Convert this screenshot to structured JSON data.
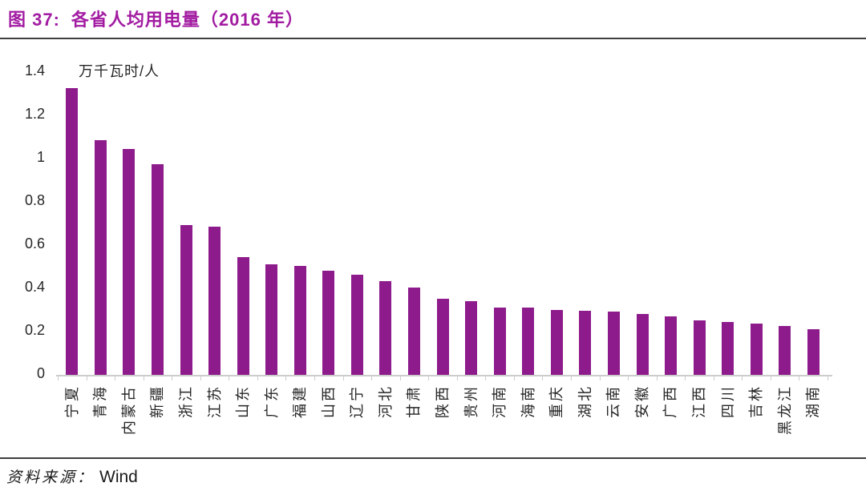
{
  "header": {
    "figure_number": "图 37:",
    "title": "各省人均用电量（2016 年）"
  },
  "chart_data": {
    "type": "bar",
    "title": "图 37: 各省人均用电量（2016 年）",
    "unit_label": "万千瓦时/人",
    "xlabel": "",
    "ylabel": "万千瓦时/人",
    "categories": [
      "宁夏",
      "青海",
      "内蒙古",
      "新疆",
      "浙江",
      "江苏",
      "山东",
      "广东",
      "福建",
      "山西",
      "辽宁",
      "河北",
      "甘肃",
      "陕西",
      "贵州",
      "河南",
      "海南",
      "重庆",
      "湖北",
      "云南",
      "安徽",
      "广西",
      "江西",
      "四川",
      "吉林",
      "黑龙江",
      "湖南"
    ],
    "values": [
      1.32,
      1.08,
      1.04,
      0.97,
      0.69,
      0.68,
      0.54,
      0.51,
      0.5,
      0.48,
      0.46,
      0.43,
      0.4,
      0.35,
      0.34,
      0.31,
      0.31,
      0.3,
      0.295,
      0.29,
      0.28,
      0.27,
      0.25,
      0.245,
      0.235,
      0.225,
      0.21
    ],
    "ylim": [
      0,
      1.4
    ],
    "ytick_labels": [
      "1.4",
      "1.2",
      "1",
      "0.8",
      "0.6",
      "0.4",
      "0.2",
      "0"
    ],
    "grid": false,
    "legend_position": "none",
    "bar_orientation": "vertical",
    "xlabel_rotation": "bottom-to-top"
  },
  "footer": {
    "source_prefix": "资料来源：",
    "source_name": "Wind"
  },
  "colors": {
    "title": "#A21CA2",
    "bar": "#8E1B8C",
    "axis": "#CCCCCC",
    "rule": "#3F3F3F",
    "text": "#262626"
  }
}
